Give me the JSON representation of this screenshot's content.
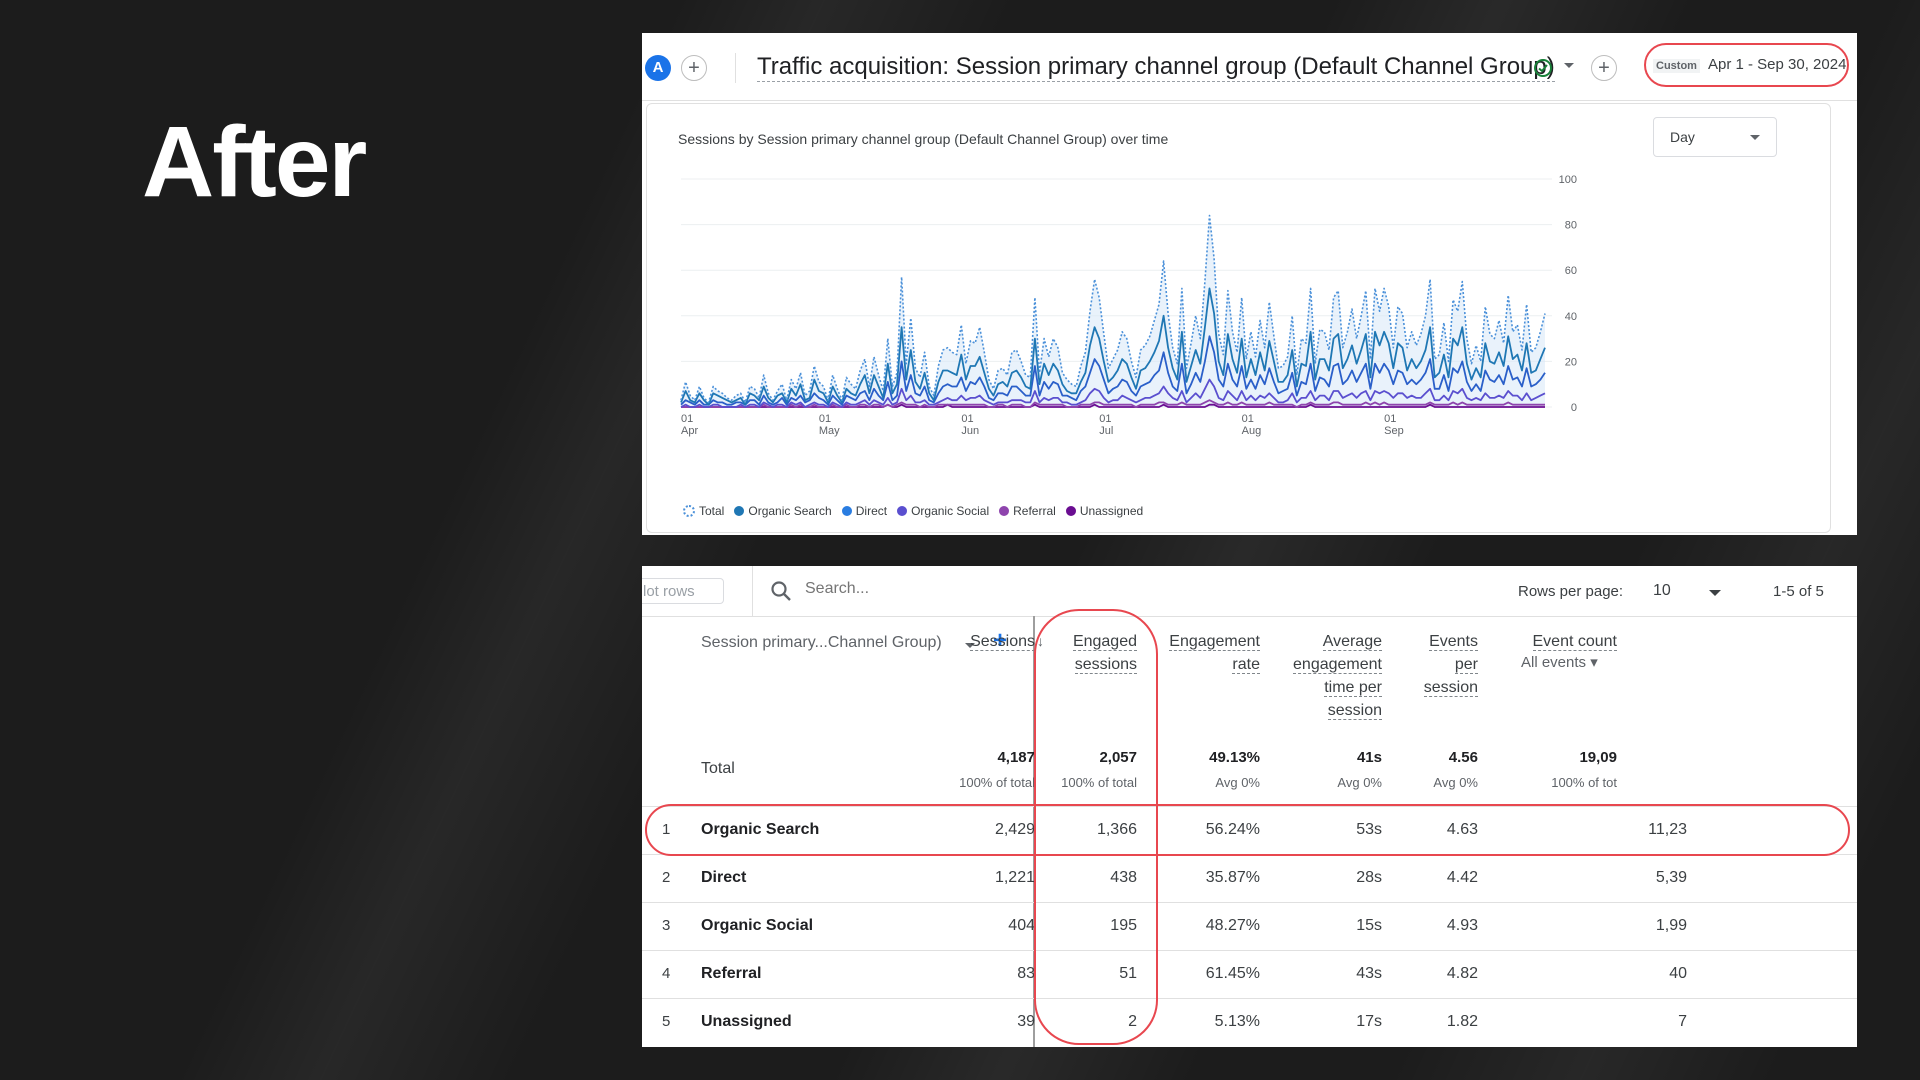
{
  "slide": {
    "heading": "After"
  },
  "header": {
    "avatar_letter": "A",
    "add_comparison": "+",
    "title": "Traffic acquisition: Session primary channel group (Default Channel Group)",
    "add_report": "+",
    "custom_tag": "Custom",
    "date_range": "Apr 1 - Sep 30, 2024"
  },
  "chart_card": {
    "title": "Sessions by Session primary channel group (Default Channel Group) over time",
    "granularity": "Day"
  },
  "chart_data": {
    "type": "line",
    "title": "Sessions by Session primary channel group (Default Channel Group) over time",
    "ylim": [
      0,
      100
    ],
    "y_ticks": [
      "100",
      "80",
      "60",
      "40",
      "20",
      "0"
    ],
    "x_ticks": [
      {
        "day": "01",
        "month": "Apr"
      },
      {
        "day": "01",
        "month": "May"
      },
      {
        "day": "01",
        "month": "Jun"
      },
      {
        "day": "01",
        "month": "Jul"
      },
      {
        "day": "01",
        "month": "Aug"
      },
      {
        "day": "01",
        "month": "Sep"
      }
    ],
    "grid": true,
    "legend_position": "bottom-left",
    "series": [
      {
        "name": "Total",
        "color": "#4a90d9",
        "style": "dotted",
        "values": [
          3,
          11,
          5,
          3,
          9,
          4,
          2,
          9,
          7,
          6,
          4,
          3,
          5,
          6,
          2,
          9,
          8,
          4,
          14,
          6,
          3,
          7,
          10,
          3,
          12,
          8,
          15,
          5,
          7,
          18,
          11,
          9,
          3,
          14,
          8,
          3,
          13,
          10,
          8,
          16,
          21,
          9,
          22,
          14,
          7,
          30,
          9,
          15,
          57,
          19,
          39,
          17,
          13,
          24,
          9,
          5,
          18,
          25,
          26,
          24,
          23,
          36,
          19,
          29,
          28,
          35,
          24,
          12,
          8,
          16,
          17,
          14,
          24,
          25,
          20,
          14,
          13,
          48,
          15,
          30,
          22,
          30,
          26,
          15,
          12,
          10,
          9,
          18,
          24,
          42,
          56,
          48,
          32,
          17,
          21,
          25,
          33,
          30,
          20,
          13,
          25,
          27,
          31,
          38,
          45,
          64,
          41,
          26,
          19,
          52,
          17,
          28,
          40,
          30,
          55,
          84,
          65,
          32,
          23,
          51,
          33,
          24,
          48,
          21,
          33,
          22,
          38,
          26,
          46,
          31,
          17,
          18,
          22,
          40,
          14,
          30,
          28,
          52,
          19,
          34,
          33,
          25,
          48,
          51,
          26,
          33,
          43,
          30,
          40,
          51,
          21,
          52,
          42,
          52,
          44,
          26,
          44,
          41,
          26,
          33,
          27,
          32,
          40,
          56,
          21,
          23,
          37,
          20,
          47,
          42,
          55,
          30,
          19,
          27,
          20,
          44,
          32,
          30,
          38,
          28,
          49,
          33,
          36,
          25,
          45,
          24,
          26,
          33,
          41
        ]
      },
      {
        "name": "Organic Search",
        "color": "#1f77b4",
        "style": "solid",
        "values": [
          2,
          7,
          3,
          2,
          6,
          3,
          1,
          6,
          5,
          4,
          3,
          2,
          3,
          4,
          1,
          6,
          5,
          3,
          9,
          4,
          2,
          5,
          6,
          2,
          8,
          5,
          10,
          3,
          4,
          12,
          7,
          6,
          2,
          9,
          5,
          2,
          8,
          6,
          5,
          10,
          14,
          6,
          14,
          9,
          4,
          19,
          6,
          10,
          35,
          12,
          25,
          11,
          8,
          15,
          6,
          3,
          11,
          16,
          16,
          15,
          14,
          23,
          12,
          18,
          18,
          22,
          15,
          8,
          5,
          10,
          11,
          9,
          15,
          16,
          13,
          9,
          8,
          30,
          10,
          19,
          14,
          19,
          16,
          10,
          7,
          6,
          6,
          11,
          15,
          27,
          35,
          30,
          20,
          11,
          13,
          16,
          21,
          19,
          13,
          8,
          16,
          17,
          20,
          24,
          29,
          40,
          26,
          17,
          12,
          33,
          11,
          18,
          25,
          19,
          35,
          52,
          41,
          20,
          14,
          32,
          21,
          15,
          30,
          13,
          21,
          14,
          24,
          16,
          29,
          20,
          11,
          11,
          14,
          25,
          9,
          19,
          18,
          33,
          12,
          21,
          21,
          16,
          30,
          32,
          17,
          21,
          27,
          19,
          25,
          32,
          13,
          33,
          27,
          33,
          28,
          17,
          28,
          26,
          16,
          21,
          17,
          20,
          25,
          35,
          13,
          15,
          23,
          13,
          30,
          27,
          35,
          19,
          12,
          17,
          13,
          28,
          20,
          19,
          24,
          18,
          31,
          21,
          23,
          16,
          28,
          15,
          16,
          21,
          26
        ]
      },
      {
        "name": "Direct",
        "color": "#2a5fc9",
        "style": "solid",
        "values": [
          1,
          3,
          2,
          1,
          3,
          1,
          1,
          3,
          2,
          2,
          1,
          1,
          2,
          2,
          1,
          3,
          3,
          1,
          5,
          2,
          1,
          2,
          4,
          1,
          4,
          3,
          5,
          2,
          3,
          6,
          4,
          3,
          1,
          5,
          3,
          1,
          5,
          4,
          3,
          6,
          7,
          3,
          8,
          5,
          3,
          11,
          3,
          5,
          20,
          7,
          14,
          6,
          5,
          9,
          3,
          2,
          6,
          9,
          10,
          9,
          9,
          13,
          7,
          11,
          10,
          13,
          9,
          4,
          3,
          6,
          6,
          5,
          9,
          9,
          7,
          5,
          5,
          18,
          5,
          11,
          8,
          11,
          10,
          5,
          5,
          4,
          3,
          7,
          9,
          15,
          21,
          18,
          12,
          6,
          8,
          9,
          12,
          11,
          7,
          5,
          9,
          10,
          11,
          14,
          16,
          24,
          15,
          9,
          7,
          19,
          6,
          10,
          15,
          11,
          20,
          31,
          24,
          12,
          9,
          19,
          12,
          9,
          18,
          8,
          12,
          8,
          14,
          10,
          17,
          11,
          6,
          7,
          8,
          15,
          5,
          11,
          10,
          19,
          7,
          13,
          12,
          9,
          18,
          19,
          10,
          12,
          16,
          11,
          15,
          19,
          8,
          19,
          15,
          19,
          16,
          10,
          16,
          15,
          10,
          12,
          10,
          12,
          15,
          21,
          8,
          8,
          14,
          7,
          17,
          15,
          20,
          11,
          7,
          10,
          7,
          16,
          12,
          11,
          14,
          10,
          18,
          12,
          13,
          9,
          17,
          9,
          10,
          12,
          15
        ]
      },
      {
        "name": "Organic Social",
        "color": "#5a4fcf",
        "style": "solid",
        "values": [
          0,
          1,
          0,
          0,
          1,
          0,
          0,
          1,
          1,
          0,
          0,
          0,
          0,
          1,
          0,
          1,
          1,
          0,
          2,
          1,
          0,
          1,
          1,
          0,
          2,
          1,
          2,
          0,
          1,
          2,
          1,
          1,
          0,
          2,
          1,
          0,
          2,
          1,
          1,
          2,
          3,
          1,
          3,
          2,
          1,
          4,
          1,
          2,
          8,
          3,
          5,
          2,
          2,
          3,
          1,
          1,
          2,
          3,
          4,
          3,
          3,
          5,
          3,
          4,
          4,
          5,
          3,
          2,
          1,
          2,
          2,
          2,
          3,
          3,
          3,
          2,
          2,
          7,
          2,
          4,
          3,
          4,
          4,
          2,
          2,
          1,
          1,
          2,
          3,
          6,
          8,
          7,
          4,
          2,
          3,
          3,
          5,
          4,
          3,
          2,
          3,
          4,
          4,
          5,
          6,
          9,
          6,
          4,
          3,
          7,
          2,
          4,
          6,
          4,
          8,
          12,
          9,
          4,
          3,
          7,
          5,
          3,
          7,
          3,
          5,
          3,
          5,
          4,
          6,
          4,
          2,
          2,
          3,
          6,
          2,
          4,
          4,
          7,
          3,
          5,
          5,
          3,
          7,
          7,
          4,
          5,
          6,
          4,
          6,
          7,
          3,
          7,
          6,
          7,
          6,
          4,
          6,
          6,
          4,
          5,
          4,
          4,
          6,
          8,
          3,
          3,
          5,
          3,
          7,
          6,
          8,
          4,
          3,
          4,
          3,
          6,
          4,
          4,
          5,
          4,
          7,
          5,
          5,
          3,
          6,
          3,
          4,
          5,
          6
        ]
      },
      {
        "name": "Referral",
        "color": "#8e44ad",
        "style": "solid",
        "values": [
          0,
          0,
          0,
          0,
          0,
          0,
          0,
          0,
          0,
          0,
          0,
          0,
          0,
          0,
          0,
          0,
          0,
          0,
          1,
          0,
          0,
          0,
          0,
          0,
          1,
          0,
          1,
          0,
          0,
          1,
          0,
          0,
          0,
          1,
          0,
          0,
          1,
          0,
          0,
          1,
          1,
          0,
          1,
          1,
          0,
          1,
          0,
          1,
          2,
          1,
          1,
          1,
          0,
          1,
          0,
          0,
          1,
          1,
          1,
          1,
          1,
          1,
          1,
          1,
          1,
          1,
          1,
          0,
          0,
          1,
          1,
          0,
          1,
          1,
          1,
          0,
          0,
          2,
          1,
          1,
          1,
          1,
          1,
          1,
          0,
          0,
          0,
          1,
          1,
          1,
          2,
          2,
          1,
          1,
          1,
          1,
          1,
          1,
          1,
          0,
          1,
          1,
          1,
          1,
          2,
          2,
          1,
          1,
          1,
          2,
          1,
          1,
          1,
          1,
          2,
          3,
          2,
          1,
          1,
          2,
          1,
          1,
          2,
          1,
          1,
          1,
          1,
          1,
          2,
          1,
          1,
          1,
          1,
          1,
          0,
          1,
          1,
          2,
          1,
          1,
          1,
          1,
          2,
          2,
          1,
          1,
          1,
          1,
          1,
          2,
          1,
          2,
          1,
          2,
          1,
          1,
          1,
          1,
          1,
          1,
          1,
          1,
          1,
          2,
          1,
          1,
          1,
          1,
          2,
          1,
          2,
          1,
          1,
          1,
          1,
          1,
          1,
          1,
          1,
          1,
          2,
          1,
          1,
          1,
          1,
          1,
          1,
          1,
          1
        ]
      },
      {
        "name": "Unassigned",
        "color": "#6a0d91",
        "style": "solid",
        "values": [
          0,
          0,
          0,
          0,
          0,
          0,
          0,
          0,
          0,
          0,
          0,
          0,
          0,
          0,
          0,
          0,
          0,
          0,
          0,
          0,
          0,
          0,
          0,
          0,
          0,
          0,
          0,
          0,
          0,
          0,
          0,
          0,
          0,
          0,
          0,
          0,
          0,
          0,
          0,
          0,
          0,
          0,
          0,
          0,
          0,
          1,
          0,
          0,
          1,
          0,
          0,
          0,
          0,
          0,
          0,
          0,
          0,
          0,
          1,
          0,
          0,
          0,
          0,
          0,
          0,
          0,
          0,
          0,
          0,
          0,
          0,
          0,
          0,
          0,
          0,
          0,
          0,
          1,
          0,
          0,
          0,
          0,
          0,
          0,
          0,
          0,
          0,
          0,
          0,
          0,
          1,
          0,
          0,
          0,
          0,
          0,
          0,
          0,
          0,
          0,
          0,
          0,
          0,
          0,
          0,
          1,
          0,
          0,
          0,
          0,
          0,
          0,
          0,
          0,
          0,
          1,
          1,
          0,
          0,
          0,
          0,
          0,
          0,
          0,
          0,
          0,
          0,
          0,
          0,
          0,
          0,
          0,
          0,
          0,
          0,
          0,
          0,
          1,
          0,
          0,
          0,
          0,
          0,
          0,
          0,
          0,
          0,
          0,
          0,
          0,
          0,
          0,
          0,
          0,
          0,
          0,
          0,
          0,
          0,
          0,
          0,
          0,
          0,
          1,
          0,
          0,
          0,
          0,
          0,
          0,
          0,
          0,
          0,
          0,
          0,
          0,
          0,
          0,
          0,
          0,
          0,
          0,
          0,
          0,
          0,
          0,
          0,
          0,
          0
        ]
      }
    ]
  },
  "table": {
    "plot_rows": "lot rows",
    "search_placeholder": "Search...",
    "rows_per_page_label": "Rows per page:",
    "rows_per_page_value": "10",
    "pagination": "1-5 of 5",
    "dimension_header": "Session primary...Channel Group)",
    "columns": [
      {
        "lines": [
          "Sessions"
        ]
      },
      {
        "lines": [
          "Engaged",
          "sessions"
        ]
      },
      {
        "lines": [
          "Engagement",
          "rate"
        ]
      },
      {
        "lines": [
          "Average",
          "engagement",
          "time per",
          "session"
        ]
      },
      {
        "lines": [
          "Events",
          "per",
          "session"
        ]
      },
      {
        "lines": [
          "Event count"
        ],
        "sub": "All events"
      }
    ],
    "total": {
      "label": "Total",
      "values": [
        "4,187",
        "2,057",
        "49.13%",
        "41s",
        "4.56",
        "19,09"
      ],
      "subs": [
        "100% of total",
        "100% of total",
        "Avg 0%",
        "Avg 0%",
        "Avg 0%",
        "100% of tot"
      ]
    },
    "rows": [
      {
        "index": "1",
        "name": "Organic Search",
        "values": [
          "2,429",
          "1,366",
          "56.24%",
          "53s",
          "4.63",
          "11,23"
        ]
      },
      {
        "index": "2",
        "name": "Direct",
        "values": [
          "1,221",
          "438",
          "35.87%",
          "28s",
          "4.42",
          "5,39"
        ]
      },
      {
        "index": "3",
        "name": "Organic Social",
        "values": [
          "404",
          "195",
          "48.27%",
          "15s",
          "4.93",
          "1,99"
        ]
      },
      {
        "index": "4",
        "name": "Referral",
        "values": [
          "83",
          "51",
          "61.45%",
          "43s",
          "4.82",
          "40"
        ]
      },
      {
        "index": "5",
        "name": "Unassigned",
        "values": [
          "39",
          "2",
          "5.13%",
          "17s",
          "1.82",
          "7"
        ]
      }
    ]
  },
  "colors": {
    "highlight": "#e8474f",
    "accent": "#1a73e8"
  }
}
